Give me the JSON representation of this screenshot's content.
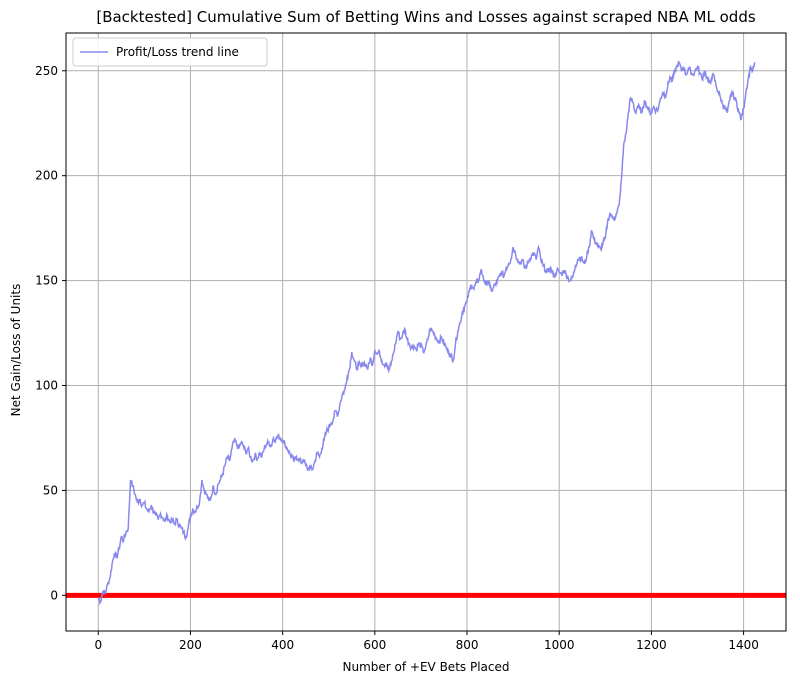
{
  "chart_data": {
    "type": "line",
    "title": "[Backtested] Cumulative Sum of Betting Wins and Losses against scraped NBA ML odds",
    "xlabel": "Number of +EV Bets Placed",
    "ylabel": "Net Gain/Loss of Units",
    "xlim": [
      -70,
      1492
    ],
    "ylim": [
      -17,
      268
    ],
    "xticks": [
      0,
      200,
      400,
      600,
      800,
      1000,
      1200,
      1400
    ],
    "yticks": [
      0,
      50,
      100,
      150,
      200,
      250
    ],
    "grid": true,
    "legend": "top-left",
    "series": [
      {
        "name": "Profit/Loss trend line",
        "color": "#8888ee",
        "points": [
          [
            0,
            -1
          ],
          [
            5,
            -3
          ],
          [
            10,
            2
          ],
          [
            15,
            1
          ],
          [
            20,
            5
          ],
          [
            25,
            8
          ],
          [
            30,
            15
          ],
          [
            35,
            20
          ],
          [
            40,
            18
          ],
          [
            45,
            22
          ],
          [
            50,
            28
          ],
          [
            55,
            26
          ],
          [
            60,
            30
          ],
          [
            65,
            32
          ],
          [
            70,
            55
          ],
          [
            75,
            52
          ],
          [
            80,
            48
          ],
          [
            85,
            44
          ],
          [
            90,
            46
          ],
          [
            95,
            43
          ],
          [
            100,
            44
          ],
          [
            105,
            41
          ],
          [
            110,
            40
          ],
          [
            115,
            43
          ],
          [
            120,
            40
          ],
          [
            125,
            38
          ],
          [
            130,
            36
          ],
          [
            135,
            39
          ],
          [
            140,
            37
          ],
          [
            145,
            35
          ],
          [
            150,
            38
          ],
          [
            155,
            35
          ],
          [
            160,
            36
          ],
          [
            165,
            34
          ],
          [
            170,
            36
          ],
          [
            175,
            34
          ],
          [
            180,
            32
          ],
          [
            185,
            30
          ],
          [
            190,
            28
          ],
          [
            195,
            32
          ],
          [
            200,
            38
          ],
          [
            205,
            41
          ],
          [
            210,
            40
          ],
          [
            215,
            42
          ],
          [
            220,
            45
          ],
          [
            225,
            55
          ],
          [
            230,
            50
          ],
          [
            235,
            48
          ],
          [
            240,
            45
          ],
          [
            245,
            47
          ],
          [
            250,
            52
          ],
          [
            255,
            48
          ],
          [
            260,
            53
          ],
          [
            265,
            55
          ],
          [
            270,
            58
          ],
          [
            275,
            62
          ],
          [
            280,
            66
          ],
          [
            285,
            64
          ],
          [
            290,
            70
          ],
          [
            295,
            74
          ],
          [
            300,
            72
          ],
          [
            305,
            70
          ],
          [
            310,
            73
          ],
          [
            315,
            71
          ],
          [
            320,
            68
          ],
          [
            325,
            70
          ],
          [
            330,
            66
          ],
          [
            335,
            64
          ],
          [
            340,
            67
          ],
          [
            345,
            65
          ],
          [
            350,
            68
          ],
          [
            355,
            66
          ],
          [
            360,
            70
          ],
          [
            365,
            72
          ],
          [
            370,
            73
          ],
          [
            375,
            71
          ],
          [
            380,
            75
          ],
          [
            385,
            74
          ],
          [
            390,
            76
          ],
          [
            395,
            75
          ],
          [
            400,
            74
          ],
          [
            405,
            72
          ],
          [
            410,
            70
          ],
          [
            415,
            68
          ],
          [
            420,
            66
          ],
          [
            425,
            64
          ],
          [
            430,
            66
          ],
          [
            435,
            65
          ],
          [
            440,
            63
          ],
          [
            445,
            65
          ],
          [
            450,
            62
          ],
          [
            455,
            60
          ],
          [
            460,
            61
          ],
          [
            465,
            60
          ],
          [
            470,
            64
          ],
          [
            475,
            68
          ],
          [
            480,
            66
          ],
          [
            485,
            70
          ],
          [
            490,
            74
          ],
          [
            495,
            78
          ],
          [
            500,
            80
          ],
          [
            505,
            82
          ],
          [
            510,
            84
          ],
          [
            515,
            88
          ],
          [
            520,
            86
          ],
          [
            525,
            92
          ],
          [
            530,
            96
          ],
          [
            535,
            98
          ],
          [
            540,
            104
          ],
          [
            545,
            108
          ],
          [
            550,
            116
          ],
          [
            555,
            112
          ],
          [
            560,
            108
          ],
          [
            565,
            110
          ],
          [
            570,
            109
          ],
          [
            575,
            111
          ],
          [
            580,
            110
          ],
          [
            585,
            108
          ],
          [
            590,
            113
          ],
          [
            595,
            110
          ],
          [
            600,
            117
          ],
          [
            605,
            115
          ],
          [
            610,
            116
          ],
          [
            615,
            112
          ],
          [
            620,
            110
          ],
          [
            625,
            111
          ],
          [
            630,
            107
          ],
          [
            635,
            110
          ],
          [
            640,
            115
          ],
          [
            645,
            120
          ],
          [
            650,
            126
          ],
          [
            655,
            122
          ],
          [
            660,
            124
          ],
          [
            665,
            127
          ],
          [
            670,
            122
          ],
          [
            675,
            120
          ],
          [
            680,
            118
          ],
          [
            685,
            119
          ],
          [
            690,
            117
          ],
          [
            695,
            120
          ],
          [
            700,
            119
          ],
          [
            705,
            116
          ],
          [
            710,
            118
          ],
          [
            715,
            122
          ],
          [
            720,
            127
          ],
          [
            725,
            126
          ],
          [
            730,
            124
          ],
          [
            735,
            122
          ],
          [
            740,
            121
          ],
          [
            745,
            123
          ],
          [
            750,
            120
          ],
          [
            755,
            118
          ],
          [
            760,
            116
          ],
          [
            765,
            114
          ],
          [
            770,
            112
          ],
          [
            775,
            120
          ],
          [
            780,
            126
          ],
          [
            785,
            130
          ],
          [
            790,
            135
          ],
          [
            795,
            138
          ],
          [
            800,
            140
          ],
          [
            805,
            145
          ],
          [
            810,
            148
          ],
          [
            815,
            146
          ],
          [
            820,
            149
          ],
          [
            825,
            150
          ],
          [
            830,
            155
          ],
          [
            835,
            152
          ],
          [
            840,
            148
          ],
          [
            845,
            150
          ],
          [
            850,
            147
          ],
          [
            855,
            145
          ],
          [
            860,
            148
          ],
          [
            865,
            149
          ],
          [
            870,
            152
          ],
          [
            875,
            154
          ],
          [
            880,
            152
          ],
          [
            885,
            156
          ],
          [
            890,
            158
          ],
          [
            895,
            160
          ],
          [
            900,
            166
          ],
          [
            905,
            163
          ],
          [
            910,
            160
          ],
          [
            915,
            158
          ],
          [
            920,
            160
          ],
          [
            925,
            156
          ],
          [
            930,
            157
          ],
          [
            935,
            160
          ],
          [
            940,
            162
          ],
          [
            945,
            163
          ],
          [
            950,
            160
          ],
          [
            955,
            166
          ],
          [
            960,
            160
          ],
          [
            965,
            157
          ],
          [
            970,
            155
          ],
          [
            975,
            154
          ],
          [
            980,
            156
          ],
          [
            985,
            154
          ],
          [
            990,
            152
          ],
          [
            995,
            155
          ],
          [
            1000,
            154
          ],
          [
            1005,
            153
          ],
          [
            1010,
            155
          ],
          [
            1015,
            153
          ],
          [
            1020,
            151
          ],
          [
            1025,
            150
          ],
          [
            1030,
            152
          ],
          [
            1035,
            157
          ],
          [
            1040,
            160
          ],
          [
            1045,
            161
          ],
          [
            1050,
            160
          ],
          [
            1055,
            158
          ],
          [
            1060,
            162
          ],
          [
            1065,
            166
          ],
          [
            1070,
            174
          ],
          [
            1075,
            170
          ],
          [
            1080,
            168
          ],
          [
            1085,
            166
          ],
          [
            1090,
            165
          ],
          [
            1095,
            168
          ],
          [
            1100,
            170
          ],
          [
            1105,
            178
          ],
          [
            1110,
            182
          ],
          [
            1115,
            180
          ],
          [
            1120,
            180
          ],
          [
            1125,
            182
          ],
          [
            1130,
            186
          ],
          [
            1135,
            198
          ],
          [
            1140,
            215
          ],
          [
            1145,
            220
          ],
          [
            1150,
            230
          ],
          [
            1155,
            237
          ],
          [
            1160,
            235
          ],
          [
            1165,
            230
          ],
          [
            1170,
            233
          ],
          [
            1175,
            232
          ],
          [
            1180,
            230
          ],
          [
            1185,
            236
          ],
          [
            1190,
            233
          ],
          [
            1195,
            231
          ],
          [
            1200,
            230
          ],
          [
            1205,
            233
          ],
          [
            1210,
            231
          ],
          [
            1215,
            232
          ],
          [
            1220,
            237
          ],
          [
            1225,
            240
          ],
          [
            1230,
            238
          ],
          [
            1235,
            242
          ],
          [
            1240,
            247
          ],
          [
            1245,
            245
          ],
          [
            1250,
            249
          ],
          [
            1255,
            252
          ],
          [
            1260,
            254
          ],
          [
            1265,
            250
          ],
          [
            1270,
            252
          ],
          [
            1275,
            248
          ],
          [
            1280,
            251
          ],
          [
            1285,
            250
          ],
          [
            1290,
            248
          ],
          [
            1295,
            250
          ],
          [
            1300,
            252
          ],
          [
            1305,
            249
          ],
          [
            1310,
            246
          ],
          [
            1315,
            250
          ],
          [
            1320,
            247
          ],
          [
            1325,
            244
          ],
          [
            1330,
            246
          ],
          [
            1335,
            248
          ],
          [
            1340,
            243
          ],
          [
            1345,
            240
          ],
          [
            1350,
            237
          ],
          [
            1355,
            234
          ],
          [
            1360,
            232
          ],
          [
            1365,
            230
          ],
          [
            1370,
            236
          ],
          [
            1375,
            240
          ],
          [
            1380,
            237
          ],
          [
            1385,
            235
          ],
          [
            1390,
            230
          ],
          [
            1395,
            227
          ],
          [
            1400,
            232
          ],
          [
            1405,
            240
          ],
          [
            1410,
            246
          ],
          [
            1415,
            252
          ],
          [
            1420,
            250
          ],
          [
            1425,
            254
          ]
        ]
      },
      {
        "name": "",
        "color": "#ff0000",
        "points": [
          [
            -70,
            0
          ],
          [
            1492,
            0
          ]
        ]
      }
    ]
  }
}
